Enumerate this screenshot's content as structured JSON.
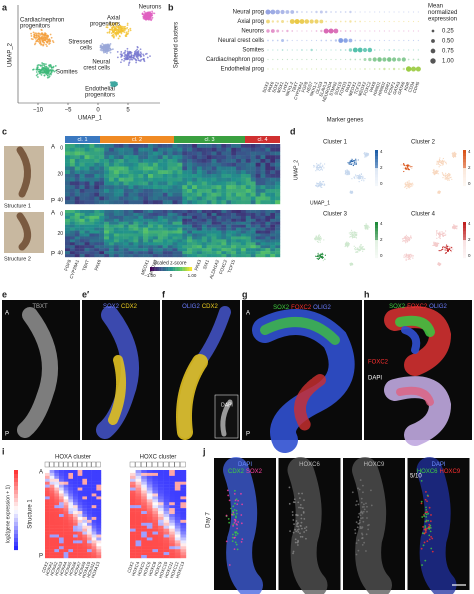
{
  "a": {
    "letter": "a",
    "y_label": "UMAP_2",
    "x_label": "UMAP_1",
    "x_ticks": [
      "−10",
      "−5",
      "0",
      "5"
    ],
    "clusters": [
      [
        "Cardiac/nephron",
        "progenitors"
      ],
      [
        "Somites"
      ],
      [
        "Axial",
        "progenitors"
      ],
      [
        "Neurons"
      ],
      [
        "Stressed",
        "cells"
      ],
      [
        "Neural",
        "crest cells"
      ],
      [
        "Endothelial",
        "progenitors"
      ]
    ]
  },
  "b": {
    "letter": "b",
    "y_label": "Spheroid clusters",
    "x_label": "Marker genes",
    "rows": [
      "Neural prog",
      "Axial prog",
      "Neurons",
      "Neural crest cells",
      "Somites",
      "Cardiac/nephron prog",
      "Endothelial prog"
    ],
    "colors": [
      "#8f9ee0",
      "#e8c53a",
      "#d65fb0",
      "#6f8fe0",
      "#3cb8a0",
      "#5fb870",
      "#9ccc44"
    ],
    "genes": [
      "SOX2",
      "PAX6",
      "SOX1",
      "MSX1",
      "LHX2",
      "NKX1-2",
      "TBXT",
      "CYP26A1",
      "FGF8",
      "HES7",
      "NKX1-1",
      "OLIG3",
      "ELAVL3",
      "NEUROD4",
      "STMN2",
      "SOX10",
      "FOXD3",
      "PAX3",
      "MEOX1",
      "TCF15",
      "MEOX2",
      "FOXC2",
      "PAX8",
      "HAND1",
      "HAND2",
      "OSR1",
      "FOXF1",
      "GATA3",
      "GATA6",
      "KDR",
      "CD34",
      "CDH5"
    ],
    "values": [
      [
        0.9,
        0.8,
        0.7,
        0.6,
        0.5,
        0.5,
        0.2,
        0.1,
        0.1,
        0.1,
        0.2,
        0.3,
        0.2,
        0.1,
        0.1,
        0.1,
        0.1,
        0.2,
        0.05,
        0.05,
        0.05,
        0.05,
        0.05,
        0.05,
        0.05,
        0.05,
        0.05,
        0.05,
        0.05,
        0.05,
        0.05,
        0.05
      ],
      [
        0.5,
        0.2,
        0.2,
        0.3,
        0.1,
        0.8,
        0.9,
        0.8,
        0.7,
        0.6,
        0.6,
        0.5,
        0.1,
        0.1,
        0.1,
        0.1,
        0.1,
        0.2,
        0.1,
        0.1,
        0.05,
        0.05,
        0.05,
        0.05,
        0.05,
        0.05,
        0.05,
        0.05,
        0.05,
        0.05,
        0.05,
        0.05
      ],
      [
        0.4,
        0.5,
        0.3,
        0.1,
        0.2,
        0.1,
        0.05,
        0.05,
        0.05,
        0.05,
        0.1,
        0.2,
        0.9,
        0.9,
        0.8,
        0.1,
        0.1,
        0.1,
        0.05,
        0.05,
        0.05,
        0.05,
        0.05,
        0.05,
        0.05,
        0.05,
        0.05,
        0.05,
        0.05,
        0.05,
        0.05,
        0.05
      ],
      [
        0.1,
        0.1,
        0.1,
        0.3,
        0.1,
        0.05,
        0.05,
        0.05,
        0.05,
        0.05,
        0.05,
        0.1,
        0.1,
        0.1,
        0.2,
        0.8,
        0.7,
        0.5,
        0.1,
        0.1,
        0.1,
        0.1,
        0.05,
        0.05,
        0.05,
        0.05,
        0.05,
        0.05,
        0.05,
        0.05,
        0.05,
        0.05
      ],
      [
        0.05,
        0.05,
        0.05,
        0.1,
        0.05,
        0.05,
        0.05,
        0.1,
        0.05,
        0.2,
        0.05,
        0.05,
        0.05,
        0.05,
        0.05,
        0.1,
        0.1,
        0.4,
        0.8,
        0.8,
        0.6,
        0.7,
        0.1,
        0.05,
        0.05,
        0.1,
        0.1,
        0.05,
        0.05,
        0.05,
        0.05,
        0.05
      ],
      [
        0.05,
        0.05,
        0.05,
        0.05,
        0.05,
        0.05,
        0.05,
        0.05,
        0.05,
        0.05,
        0.05,
        0.05,
        0.05,
        0.05,
        0.05,
        0.05,
        0.05,
        0.1,
        0.1,
        0.1,
        0.3,
        0.4,
        0.6,
        0.7,
        0.6,
        0.7,
        0.6,
        0.5,
        0.6,
        0.1,
        0.1,
        0.1
      ],
      [
        0.05,
        0.05,
        0.05,
        0.05,
        0.05,
        0.05,
        0.05,
        0.05,
        0.05,
        0.05,
        0.05,
        0.05,
        0.05,
        0.05,
        0.05,
        0.05,
        0.05,
        0.05,
        0.05,
        0.05,
        0.1,
        0.05,
        0.1,
        0.1,
        0.2,
        0.1,
        0.2,
        0.1,
        0.2,
        1.0,
        0.9,
        0.9
      ]
    ],
    "legend_title": [
      "Mean",
      "normalized",
      "expression"
    ],
    "legend_values": [
      {
        "value": 0.25,
        "label": "0.25"
      },
      {
        "value": 0.5,
        "label": "0.50"
      },
      {
        "value": 0.75,
        "label": "0.75"
      },
      {
        "value": 1,
        "label": "1.00"
      }
    ]
  },
  "c": {
    "letter": "c",
    "clusters": [
      "cl. 1",
      "cl. 2",
      "cl. 3",
      "cl. 4"
    ],
    "cluster_colors": [
      "#3a78c0",
      "#f08a24",
      "#3aa040",
      "#d03030"
    ],
    "structures": [
      "Structure 1",
      "Structure 2"
    ],
    "anterior": "A",
    "posterior": "P",
    "y_ticks": [
      "0",
      "20",
      "40"
    ],
    "genes": [
      "FGF8",
      "CYP26A1",
      "TBXT",
      "PAX6",
      "MEOX1",
      "MEOX2",
      "PAX3",
      "SIX1",
      "ALDH1A2",
      "FOXC2",
      "TCF15"
    ],
    "colorbar_title": "Scaled z-score",
    "colorbar_ticks": [
      "−1.00",
      "0",
      "1.00"
    ]
  },
  "d": {
    "letter": "d",
    "titles": [
      "Cluster 1",
      "Cluster 2",
      "Cluster 3",
      "Cluster 4"
    ],
    "y_label": "UMAP_2",
    "x_label": "UMAP_1",
    "colorbar_ticks": [
      "0",
      "2",
      "4"
    ]
  },
  "e": {
    "letter": "e",
    "stains": [
      "TBXT"
    ],
    "stain_colors": [
      "#aaaaaa"
    ],
    "anterior": "A",
    "posterior": "P"
  },
  "e2": {
    "letter": "e′",
    "stains": [
      "SOX2",
      "CDX2"
    ],
    "stain_colors": [
      "#6a7cff",
      "#f0d020"
    ]
  },
  "f": {
    "letter": "f",
    "stains": [
      "OLIG2",
      "CDX2"
    ],
    "stain_colors": [
      "#6a7cff",
      "#f0d020"
    ],
    "inset": "DAPI"
  },
  "g": {
    "letter": "g",
    "stains": [
      "SOX2",
      "FOXC2",
      "OLIG2"
    ],
    "stain_colors": [
      "#40d040",
      "#ff3030",
      "#6a7cff"
    ],
    "anterior": "A",
    "posterior": "P"
  },
  "h": {
    "letter": "h",
    "stains": [
      "SOX2",
      "FOXC2",
      "OLIG2"
    ],
    "stain_colors": [
      "#40d040",
      "#ff3030",
      "#6a7cff"
    ],
    "inset_stain": "FOXC2",
    "inset2": "DAPI"
  },
  "i": {
    "letter": "i",
    "clusters": [
      "HOXA cluster",
      "HOXC cluster"
    ],
    "colorbar_label": "log2(gene expression + 1)",
    "structure": "Structure 1",
    "anterior": "A",
    "posterior": "P",
    "hoxa_genes": [
      "CDX2",
      "HOXA1",
      "HOXA2",
      "HOXA3",
      "HOXA4",
      "HOXA5",
      "HOXA6",
      "HOXA7",
      "HOXA9",
      "HOXA10",
      "HOXA11",
      "HOXA13"
    ],
    "hoxc_genes": [
      "CDX2",
      "HOXC4",
      "HOXC5",
      "HOXC6",
      "HOXC8",
      "HOXC9",
      "HOXC10",
      "HOXC11",
      "HOXC12",
      "HOXC13"
    ]
  },
  "j": {
    "letter": "j",
    "day": "Day 7",
    "count": "5/10",
    "panels": [
      {
        "lines": [
          [
            "DAPI"
          ],
          [
            "CDX2",
            "SOX2"
          ]
        ],
        "colors": [
          [
            "#6a8cff"
          ],
          [
            "#40d040",
            "#ff40a0"
          ]
        ]
      },
      {
        "lines": [
          [
            "HOXC6"
          ]
        ],
        "colors": [
          [
            "#bbbbbb"
          ]
        ]
      },
      {
        "lines": [
          [
            "HOXC9"
          ]
        ],
        "colors": [
          [
            "#bbbbbb"
          ]
        ]
      },
      {
        "lines": [
          [
            "DAPI"
          ],
          [
            "HOXC6",
            "HOXC9"
          ]
        ],
        "colors": [
          [
            "#6a8cff"
          ],
          [
            "#40d040",
            "#ff3030"
          ]
        ]
      }
    ]
  }
}
